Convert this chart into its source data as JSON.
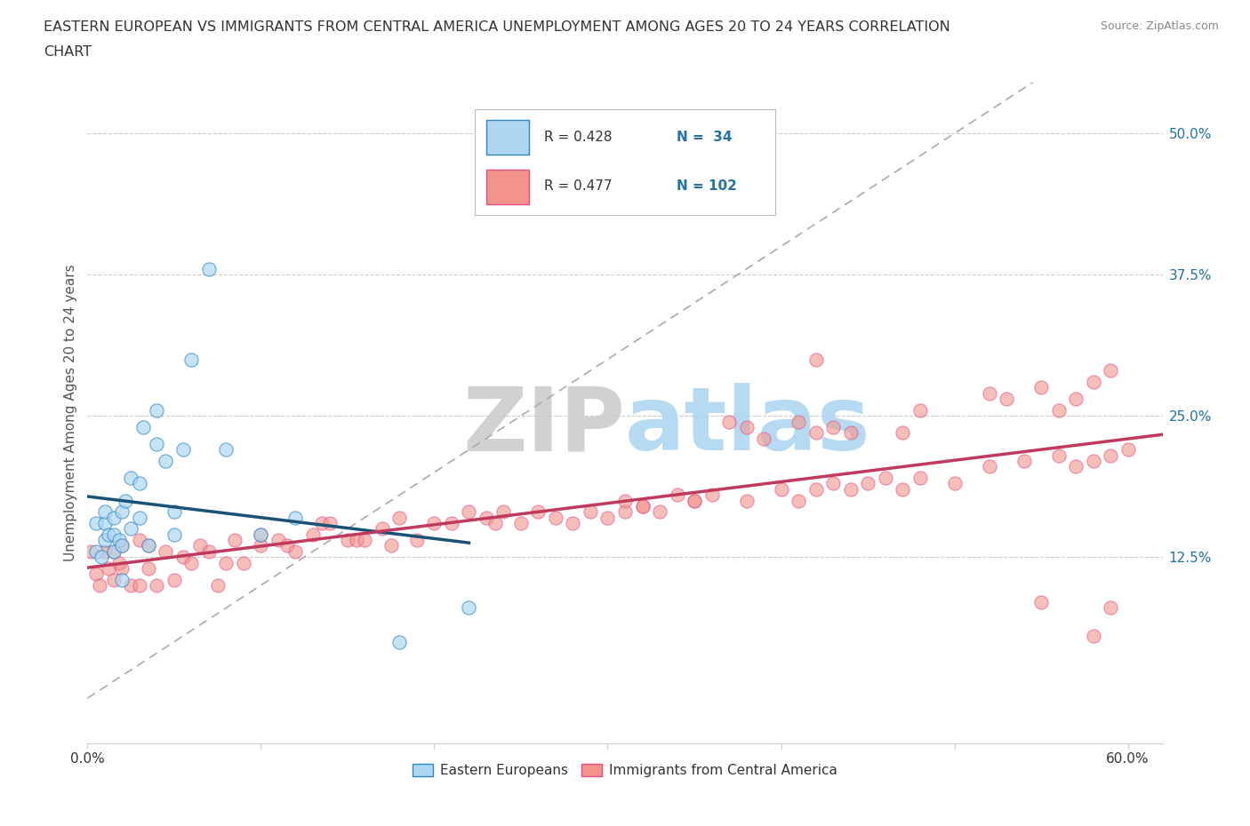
{
  "title_line1": "EASTERN EUROPEAN VS IMMIGRANTS FROM CENTRAL AMERICA UNEMPLOYMENT AMONG AGES 20 TO 24 YEARS CORRELATION",
  "title_line2": "CHART",
  "source": "Source: ZipAtlas.com",
  "ylabel": "Unemployment Among Ages 20 to 24 years",
  "xlim": [
    0.0,
    0.62
  ],
  "ylim": [
    -0.04,
    0.545
  ],
  "ytick_positions": [
    0.125,
    0.25,
    0.375,
    0.5
  ],
  "ytick_labels": [
    "12.5%",
    "25.0%",
    "37.5%",
    "50.0%"
  ],
  "blue_fill": "#AED6F1",
  "blue_edge": "#2E86C1",
  "pink_fill": "#F1948A",
  "pink_edge": "#E74C8B",
  "blue_line_color": "#1A5276",
  "pink_line_color": "#C0395E",
  "ref_line_color": "#AAAAAA",
  "watermark_ZIP_color": "#CCCCCC",
  "watermark_atlas_color": "#AED6F1",
  "legend_R1": "R = 0.428",
  "legend_N1": "N =  34",
  "legend_R2": "R = 0.477",
  "legend_N2": "N = 102",
  "legend_value_color": "#2471A3",
  "blue_scatter_x": [
    0.005,
    0.005,
    0.008,
    0.01,
    0.01,
    0.01,
    0.012,
    0.015,
    0.015,
    0.015,
    0.018,
    0.02,
    0.02,
    0.02,
    0.022,
    0.025,
    0.025,
    0.03,
    0.03,
    0.032,
    0.035,
    0.04,
    0.04,
    0.045,
    0.05,
    0.05,
    0.055,
    0.06,
    0.07,
    0.08,
    0.1,
    0.12,
    0.18,
    0.22
  ],
  "blue_scatter_y": [
    0.13,
    0.155,
    0.125,
    0.14,
    0.155,
    0.165,
    0.145,
    0.13,
    0.145,
    0.16,
    0.14,
    0.105,
    0.135,
    0.165,
    0.175,
    0.15,
    0.195,
    0.16,
    0.19,
    0.24,
    0.135,
    0.225,
    0.255,
    0.21,
    0.145,
    0.165,
    0.22,
    0.3,
    0.38,
    0.22,
    0.145,
    0.16,
    0.05,
    0.08
  ],
  "pink_scatter_x": [
    0.002,
    0.005,
    0.007,
    0.01,
    0.012,
    0.015,
    0.015,
    0.018,
    0.02,
    0.02,
    0.025,
    0.03,
    0.03,
    0.035,
    0.035,
    0.04,
    0.045,
    0.05,
    0.055,
    0.06,
    0.065,
    0.07,
    0.075,
    0.08,
    0.085,
    0.09,
    0.1,
    0.1,
    0.11,
    0.115,
    0.12,
    0.13,
    0.135,
    0.14,
    0.15,
    0.155,
    0.16,
    0.17,
    0.175,
    0.18,
    0.19,
    0.2,
    0.21,
    0.22,
    0.23,
    0.235,
    0.24,
    0.25,
    0.26,
    0.27,
    0.28,
    0.29,
    0.3,
    0.31,
    0.32,
    0.33,
    0.35,
    0.36,
    0.38,
    0.4,
    0.41,
    0.42,
    0.43,
    0.44,
    0.45,
    0.46,
    0.47,
    0.48,
    0.5,
    0.52,
    0.54,
    0.56,
    0.57,
    0.58,
    0.59,
    0.6,
    0.41,
    0.42,
    0.43,
    0.44,
    0.47,
    0.48,
    0.52,
    0.53,
    0.55,
    0.56,
    0.57,
    0.58,
    0.59,
    0.42,
    0.37,
    0.38,
    0.39,
    0.31,
    0.32,
    0.34,
    0.35,
    0.55,
    0.58,
    0.59
  ],
  "pink_scatter_y": [
    0.13,
    0.11,
    0.1,
    0.13,
    0.115,
    0.105,
    0.13,
    0.12,
    0.115,
    0.135,
    0.1,
    0.1,
    0.14,
    0.115,
    0.135,
    0.1,
    0.13,
    0.105,
    0.125,
    0.12,
    0.135,
    0.13,
    0.1,
    0.12,
    0.14,
    0.12,
    0.135,
    0.145,
    0.14,
    0.135,
    0.13,
    0.145,
    0.155,
    0.155,
    0.14,
    0.14,
    0.14,
    0.15,
    0.135,
    0.16,
    0.14,
    0.155,
    0.155,
    0.165,
    0.16,
    0.155,
    0.165,
    0.155,
    0.165,
    0.16,
    0.155,
    0.165,
    0.16,
    0.165,
    0.17,
    0.165,
    0.175,
    0.18,
    0.175,
    0.185,
    0.175,
    0.185,
    0.19,
    0.185,
    0.19,
    0.195,
    0.185,
    0.195,
    0.19,
    0.205,
    0.21,
    0.215,
    0.205,
    0.21,
    0.215,
    0.22,
    0.245,
    0.235,
    0.24,
    0.235,
    0.235,
    0.255,
    0.27,
    0.265,
    0.275,
    0.255,
    0.265,
    0.28,
    0.29,
    0.3,
    0.245,
    0.24,
    0.23,
    0.175,
    0.17,
    0.18,
    0.175,
    0.085,
    0.055,
    0.08
  ]
}
